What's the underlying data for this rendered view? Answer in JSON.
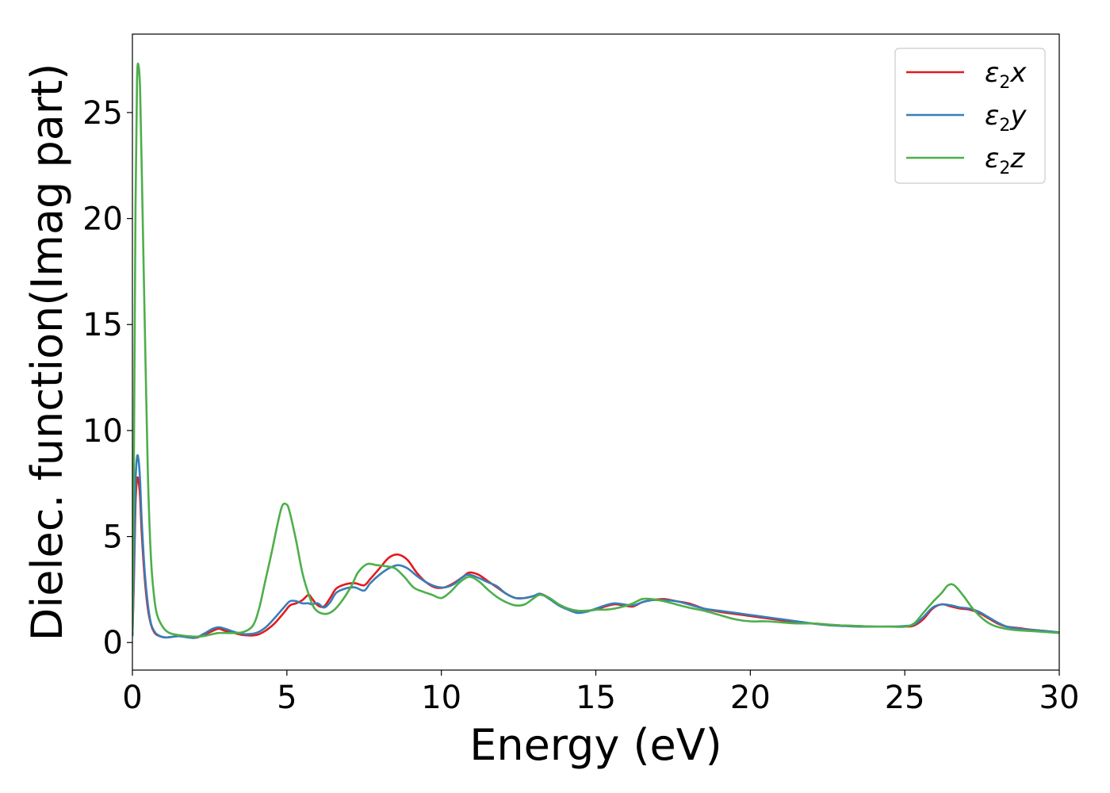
{
  "chart_data": {
    "type": "line",
    "title": "",
    "xlabel": "Energy (eV)",
    "ylabel": "Dielec. function(Imag part)",
    "xlim": [
      0,
      30
    ],
    "ylim": [
      -1.3,
      28.7
    ],
    "xticks": [
      0,
      5,
      10,
      15,
      20,
      25,
      30
    ],
    "yticks": [
      0,
      5,
      10,
      15,
      20,
      25
    ],
    "xtick_labels": [
      "0",
      "5",
      "10",
      "15",
      "20",
      "25",
      "30"
    ],
    "ytick_labels": [
      "0",
      "5",
      "10",
      "15",
      "20",
      "25"
    ],
    "grid": false,
    "legend_position": "top-right",
    "series": [
      {
        "name": "ε2x",
        "legend_symbol": "ε",
        "legend_sub": "2",
        "legend_var": "x",
        "color": "#e41a1c",
        "x": [
          0.0,
          0.05,
          0.1,
          0.15,
          0.2,
          0.25,
          0.3,
          0.4,
          0.5,
          0.6,
          0.7,
          0.8,
          1.0,
          1.2,
          1.5,
          2.0,
          2.3,
          2.6,
          2.8,
          3.0,
          3.3,
          3.6,
          4.0,
          4.3,
          4.6,
          4.9,
          5.1,
          5.3,
          5.5,
          5.7,
          5.8,
          6.0,
          6.2,
          6.4,
          6.6,
          6.9,
          7.2,
          7.5,
          7.7,
          8.0,
          8.3,
          8.6,
          8.9,
          9.2,
          9.5,
          9.8,
          10.1,
          10.4,
          10.7,
          10.9,
          11.2,
          11.5,
          11.8,
          12.1,
          12.4,
          12.7,
          13.0,
          13.2,
          13.5,
          13.8,
          14.1,
          14.4,
          14.7,
          15.0,
          15.3,
          15.6,
          15.9,
          16.2,
          16.5,
          16.8,
          17.2,
          17.6,
          18.0,
          18.5,
          19.0,
          19.5,
          20.0,
          20.5,
          21.0,
          21.5,
          22.0,
          22.5,
          23.0,
          23.5,
          24.0,
          24.5,
          25.0,
          25.3,
          25.6,
          25.9,
          26.2,
          26.5,
          26.8,
          27.1,
          27.4,
          27.7,
          28.0,
          28.3,
          28.7,
          29.0,
          29.5,
          30.0
        ],
        "y": [
          0.3,
          3.0,
          6.5,
          7.7,
          7.6,
          6.8,
          5.2,
          3.0,
          1.6,
          0.85,
          0.5,
          0.35,
          0.25,
          0.25,
          0.3,
          0.22,
          0.35,
          0.55,
          0.65,
          0.55,
          0.45,
          0.35,
          0.35,
          0.55,
          0.9,
          1.4,
          1.75,
          1.85,
          2.0,
          2.25,
          2.1,
          1.75,
          1.7,
          2.1,
          2.55,
          2.75,
          2.8,
          2.7,
          3.0,
          3.5,
          4.0,
          4.15,
          3.9,
          3.3,
          2.85,
          2.6,
          2.6,
          2.8,
          3.1,
          3.3,
          3.2,
          2.9,
          2.6,
          2.3,
          2.1,
          2.1,
          2.2,
          2.3,
          2.1,
          1.8,
          1.6,
          1.5,
          1.5,
          1.55,
          1.7,
          1.8,
          1.75,
          1.7,
          1.9,
          2.0,
          2.05,
          1.95,
          1.85,
          1.6,
          1.45,
          1.35,
          1.25,
          1.15,
          1.05,
          0.95,
          0.9,
          0.85,
          0.8,
          0.78,
          0.75,
          0.75,
          0.75,
          0.8,
          1.1,
          1.6,
          1.8,
          1.7,
          1.6,
          1.55,
          1.4,
          1.15,
          0.9,
          0.75,
          0.68,
          0.62,
          0.55,
          0.48
        ]
      },
      {
        "name": "ε2y",
        "legend_symbol": "ε",
        "legend_sub": "2",
        "legend_var": "y",
        "color": "#377eb8",
        "x": [
          0.0,
          0.05,
          0.1,
          0.15,
          0.2,
          0.25,
          0.3,
          0.4,
          0.5,
          0.6,
          0.7,
          0.8,
          1.0,
          1.2,
          1.5,
          2.0,
          2.3,
          2.6,
          2.8,
          3.0,
          3.3,
          3.6,
          4.0,
          4.3,
          4.6,
          4.9,
          5.1,
          5.3,
          5.5,
          5.7,
          5.8,
          6.0,
          6.2,
          6.4,
          6.6,
          6.9,
          7.2,
          7.5,
          7.7,
          8.0,
          8.3,
          8.6,
          8.9,
          9.2,
          9.5,
          9.8,
          10.1,
          10.4,
          10.7,
          10.9,
          11.2,
          11.5,
          11.8,
          12.1,
          12.4,
          12.7,
          13.0,
          13.2,
          13.5,
          13.8,
          14.1,
          14.4,
          14.7,
          15.0,
          15.3,
          15.6,
          15.9,
          16.2,
          16.5,
          16.8,
          17.2,
          17.6,
          18.0,
          18.5,
          19.0,
          19.5,
          20.0,
          20.5,
          21.0,
          21.5,
          22.0,
          22.5,
          23.0,
          23.5,
          24.0,
          24.5,
          25.0,
          25.3,
          25.6,
          25.9,
          26.2,
          26.5,
          26.8,
          27.1,
          27.4,
          27.7,
          28.0,
          28.3,
          28.7,
          29.0,
          29.5,
          30.0
        ],
        "y": [
          0.3,
          3.5,
          7.5,
          8.75,
          8.6,
          7.6,
          5.8,
          3.3,
          1.8,
          0.9,
          0.55,
          0.38,
          0.25,
          0.25,
          0.3,
          0.22,
          0.4,
          0.65,
          0.72,
          0.65,
          0.5,
          0.4,
          0.45,
          0.7,
          1.15,
          1.65,
          1.95,
          1.95,
          1.85,
          1.85,
          1.8,
          1.85,
          1.65,
          1.9,
          2.35,
          2.55,
          2.6,
          2.45,
          2.8,
          3.2,
          3.5,
          3.65,
          3.5,
          3.15,
          2.85,
          2.65,
          2.6,
          2.75,
          3.1,
          3.2,
          3.05,
          2.85,
          2.65,
          2.3,
          2.1,
          2.1,
          2.2,
          2.3,
          2.05,
          1.75,
          1.55,
          1.4,
          1.45,
          1.6,
          1.75,
          1.85,
          1.8,
          1.75,
          1.9,
          2.0,
          2.0,
          1.95,
          1.8,
          1.6,
          1.5,
          1.4,
          1.3,
          1.2,
          1.1,
          1.0,
          0.9,
          0.82,
          0.78,
          0.75,
          0.75,
          0.75,
          0.78,
          0.85,
          1.2,
          1.65,
          1.8,
          1.75,
          1.65,
          1.6,
          1.45,
          1.2,
          0.95,
          0.75,
          0.65,
          0.6,
          0.55,
          0.48
        ]
      },
      {
        "name": "ε2z",
        "legend_symbol": "ε",
        "legend_sub": "2",
        "legend_var": "z",
        "color": "#4daf4a",
        "x": [
          0.0,
          0.05,
          0.1,
          0.15,
          0.2,
          0.25,
          0.3,
          0.4,
          0.5,
          0.6,
          0.7,
          0.8,
          1.0,
          1.2,
          1.5,
          2.0,
          2.3,
          2.6,
          2.8,
          3.0,
          3.3,
          3.6,
          3.9,
          4.1,
          4.3,
          4.5,
          4.7,
          4.85,
          5.0,
          5.1,
          5.3,
          5.5,
          5.7,
          5.9,
          6.2,
          6.5,
          6.8,
          7.1,
          7.3,
          7.6,
          7.9,
          8.2,
          8.5,
          8.8,
          9.1,
          9.4,
          9.7,
          10.0,
          10.3,
          10.6,
          10.9,
          11.2,
          11.5,
          11.8,
          12.1,
          12.4,
          12.7,
          13.0,
          13.2,
          13.5,
          13.8,
          14.1,
          14.4,
          14.7,
          15.0,
          15.3,
          15.6,
          15.9,
          16.2,
          16.5,
          16.8,
          17.2,
          17.6,
          18.0,
          18.5,
          19.0,
          19.5,
          20.0,
          20.5,
          21.0,
          21.5,
          22.0,
          22.5,
          23.0,
          23.5,
          24.0,
          24.5,
          25.0,
          25.3,
          25.6,
          25.9,
          26.2,
          26.4,
          26.6,
          26.9,
          27.2,
          27.5,
          27.8,
          28.1,
          28.5,
          29.0,
          29.5,
          30.0
        ],
        "y": [
          0.5,
          9.0,
          20.5,
          26.5,
          27.2,
          26.0,
          22.5,
          15.0,
          8.0,
          4.0,
          2.2,
          1.3,
          0.7,
          0.45,
          0.35,
          0.28,
          0.3,
          0.4,
          0.45,
          0.45,
          0.45,
          0.5,
          0.8,
          1.6,
          2.9,
          4.2,
          5.6,
          6.45,
          6.5,
          6.1,
          4.8,
          3.3,
          2.3,
          1.6,
          1.35,
          1.5,
          2.0,
          2.7,
          3.3,
          3.7,
          3.65,
          3.6,
          3.5,
          3.1,
          2.6,
          2.4,
          2.25,
          2.1,
          2.4,
          2.85,
          3.1,
          2.9,
          2.5,
          2.15,
          1.9,
          1.75,
          1.8,
          2.1,
          2.25,
          2.1,
          1.8,
          1.6,
          1.5,
          1.5,
          1.55,
          1.55,
          1.6,
          1.7,
          1.85,
          2.05,
          2.05,
          1.95,
          1.8,
          1.65,
          1.5,
          1.3,
          1.1,
          1.0,
          1.0,
          0.95,
          0.9,
          0.9,
          0.85,
          0.8,
          0.78,
          0.75,
          0.75,
          0.75,
          0.9,
          1.4,
          1.9,
          2.35,
          2.7,
          2.7,
          2.2,
          1.6,
          1.15,
          0.85,
          0.7,
          0.6,
          0.55,
          0.5,
          0.45
        ]
      }
    ]
  }
}
